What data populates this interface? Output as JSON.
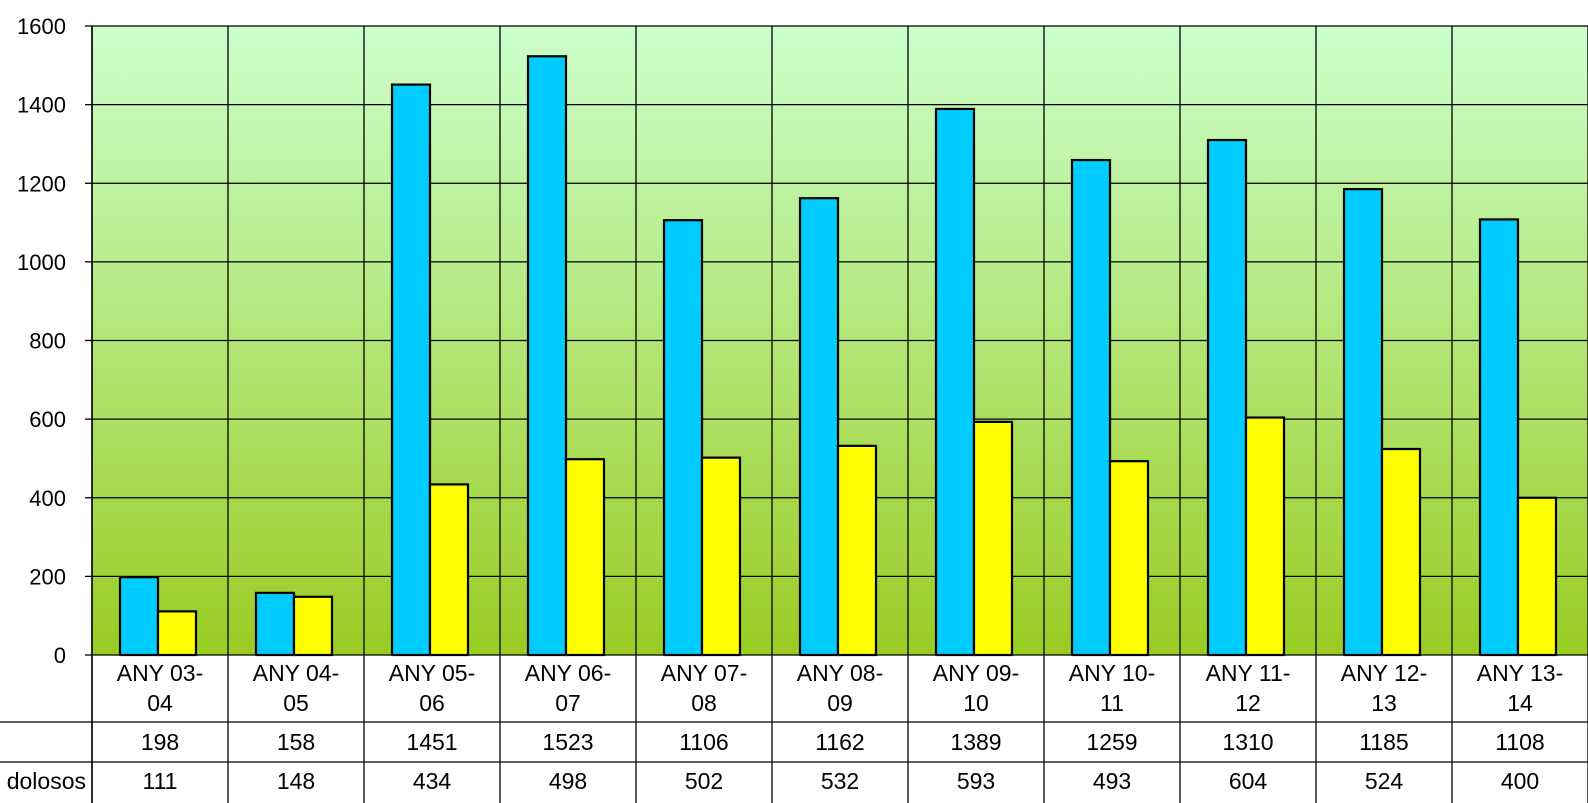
{
  "chart_data": {
    "type": "bar",
    "categories": [
      [
        "ANY 03-",
        "04"
      ],
      [
        "ANY 04-",
        "05"
      ],
      [
        "ANY 05-",
        "06"
      ],
      [
        "ANY 06-",
        "07"
      ],
      [
        "ANY 07-",
        "08"
      ],
      [
        "ANY 08-",
        "09"
      ],
      [
        "ANY 09-",
        "10"
      ],
      [
        "ANY 10-",
        "11"
      ],
      [
        "ANY 11-",
        "12"
      ],
      [
        "ANY 12-",
        "13"
      ],
      [
        "ANY 13-",
        "14"
      ]
    ],
    "series": [
      {
        "name": "",
        "color": "#00ccff",
        "values": [
          198,
          158,
          1451,
          1523,
          1106,
          1162,
          1389,
          1259,
          1310,
          1185,
          1108
        ]
      },
      {
        "name": "dolosos",
        "color": "#ffff00",
        "values": [
          111,
          148,
          434,
          498,
          502,
          532,
          593,
          493,
          604,
          524,
          400
        ]
      }
    ],
    "ylim": [
      0,
      1600
    ],
    "yticks": [
      0,
      200,
      400,
      600,
      800,
      1000,
      1200,
      1400,
      1600
    ],
    "grid": true,
    "legend": "data-table-below",
    "background_gradient": {
      "top": "#ccffcc",
      "bottom": "#99cc22"
    }
  }
}
